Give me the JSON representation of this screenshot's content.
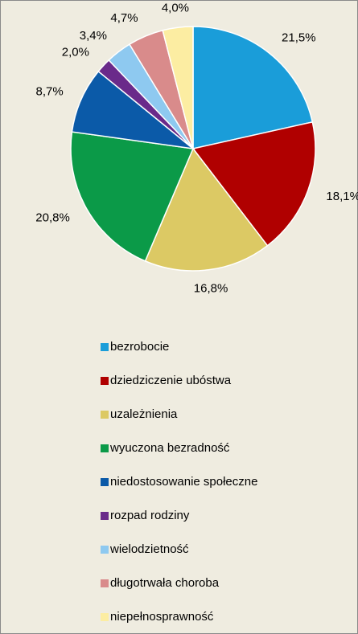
{
  "chart_data": {
    "type": "pie",
    "categories": [
      "bezrobocie",
      "dziedziczenie ubóstwa",
      "uzależnienia",
      "wyuczona bezradność",
      "niedostosowanie społeczne",
      "rozpad rodziny",
      "wielodzietność",
      "długotrwała choroba",
      "niepełnosprawność"
    ],
    "values": [
      21.5,
      18.1,
      16.8,
      20.8,
      8.7,
      2.0,
      3.4,
      4.7,
      4.0
    ],
    "value_labels": [
      "21,5%",
      "18,1%",
      "16,8%",
      "20,8%",
      "8,7%",
      "2,0%",
      "3,4%",
      "4,7%",
      "4,0%"
    ],
    "colors": [
      "#1a9dd9",
      "#b00000",
      "#dcc964",
      "#0b9a48",
      "#0b5aa8",
      "#6a2a8a",
      "#8ec9f0",
      "#d98b8b",
      "#fcedA2"
    ],
    "legend": "bottom"
  }
}
